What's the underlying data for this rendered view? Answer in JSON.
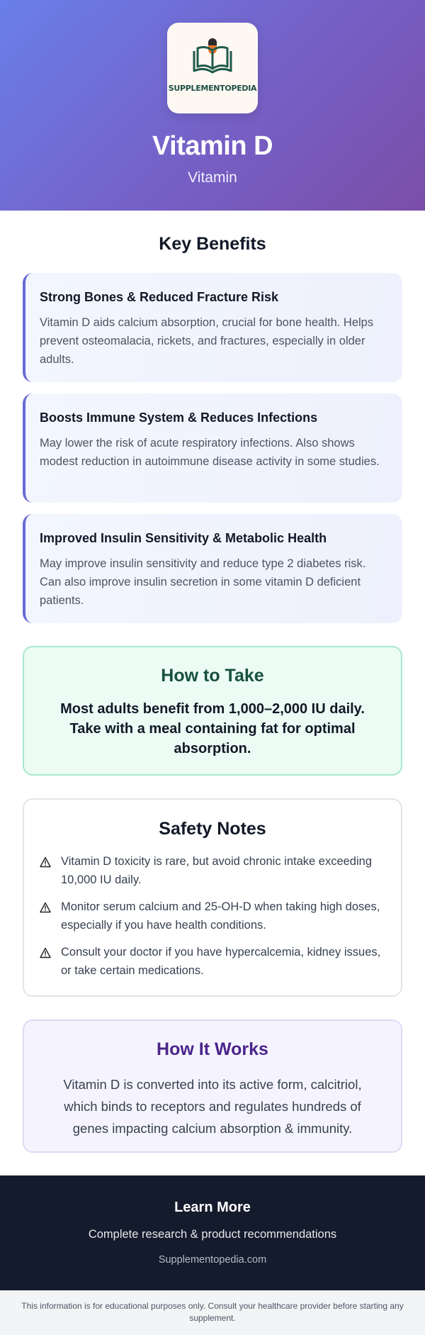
{
  "brand": {
    "name": "SUPPLEMENTOPEDIA"
  },
  "hero": {
    "title": "Vitamin D",
    "category": "Vitamin"
  },
  "benefits": {
    "heading": "Key Benefits",
    "items": [
      {
        "title": "Strong Bones & Reduced Fracture Risk",
        "text": "Vitamin D aids calcium absorption, crucial for bone health. Helps prevent osteomalacia, rickets, and fractures, especially in older adults."
      },
      {
        "title": "Boosts Immune System & Reduces Infections",
        "text": "May lower the risk of acute respiratory infections. Also shows modest reduction in autoimmune disease activity in some studies."
      },
      {
        "title": "Improved Insulin Sensitivity & Metabolic Health",
        "text": "May improve insulin sensitivity and reduce type 2 diabetes risk. Can also improve insulin secretion in some vitamin D deficient patients."
      }
    ]
  },
  "how_to_take": {
    "heading": "How to Take",
    "text": "Most adults benefit from 1,000–2,000 IU daily. Take with a meal containing fat for optimal absorption."
  },
  "safety": {
    "heading": "Safety Notes",
    "items": [
      "Vitamin D toxicity is rare, but avoid chronic intake exceeding 10,000 IU daily.",
      "Monitor serum calcium and 25-OH-D when taking high doses, especially if you have health conditions.",
      "Consult your doctor if you have hypercalcemia, kidney issues, or take certain medications."
    ]
  },
  "how_it_works": {
    "heading": "How It Works",
    "text": "Vitamin D is converted into its active form, calcitriol, which binds to receptors and regulates hundreds of genes impacting calcium absorption & immunity."
  },
  "footer": {
    "heading": "Learn More",
    "subtitle": "Complete research & product recommendations",
    "link": "Supplementopedia.com"
  },
  "disclaimer": "This information is for educational purposes only. Consult your healthcare provider before starting any supplement.",
  "colors": {
    "hero_start": "#6a7fea",
    "hero_end": "#7b4ea8",
    "accent": "#6b6ad8",
    "how_to_green": "#17503f",
    "how_it_works_purple": "#4b248b",
    "footer_bg": "#141b2c"
  },
  "icons": {
    "logo": "book-with-capsule-icon",
    "warning": "warning-triangle-icon"
  }
}
